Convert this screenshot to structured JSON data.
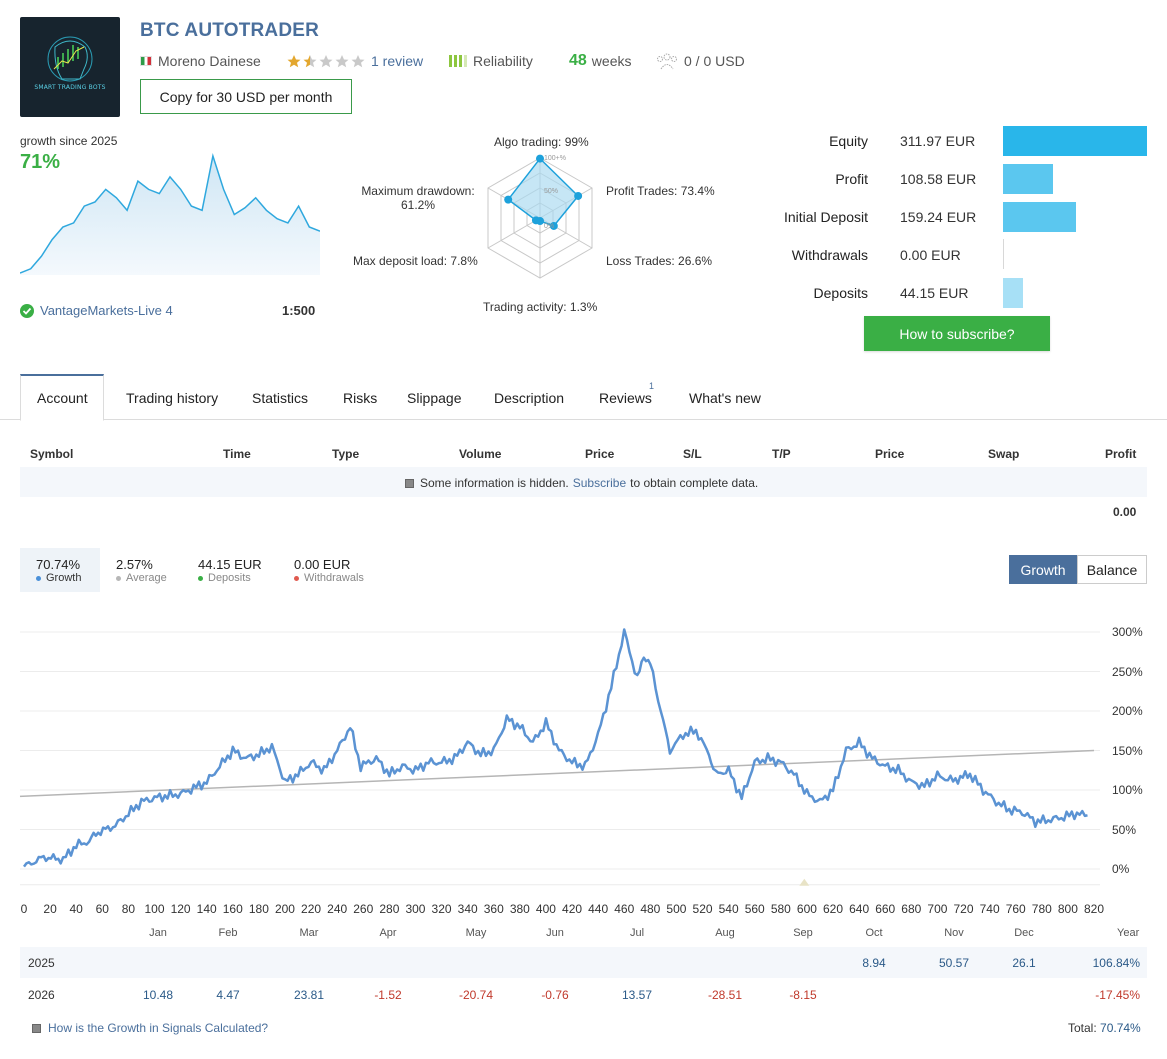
{
  "header": {
    "title": "BTC AUTOTRADER",
    "logo_text": "SMART TRADING BOTS",
    "author": "Moreno Dainese",
    "reviews": "1 review",
    "rating_stars": 1.5,
    "reliability": "Reliability",
    "weeks_value": "48",
    "weeks_label": "weeks",
    "subscribers": "0 / 0 USD",
    "copy_button": "Copy for 30 USD per month"
  },
  "growth_panel": {
    "label": "growth since 2025",
    "value": "71%",
    "broker": "VantageMarkets-Live 4",
    "leverage": "1:500",
    "sparkline": [
      0,
      5,
      20,
      40,
      55,
      60,
      80,
      85,
      100,
      90,
      75,
      110,
      100,
      95,
      115,
      100,
      80,
      75,
      140,
      100,
      70,
      78,
      90,
      75,
      65,
      60,
      80,
      55,
      50
    ]
  },
  "radar": {
    "algo": "Algo trading: 99%",
    "profit_trades": "Profit Trades: 73.4%",
    "loss_trades": "Loss Trades: 26.6%",
    "activity": "Trading activity: 1.3%",
    "max_deposit_load": "Max deposit load: 7.8%",
    "max_drawdown_line1": "Maximum drawdown:",
    "max_drawdown_line2": "61.2%",
    "ring_100": "100+%",
    "ring_50": "50%",
    "ring_0": "0%",
    "values": [
      99,
      73.4,
      26.6,
      1.3,
      7.8,
      61.2
    ]
  },
  "balance_panel": {
    "rows": [
      {
        "label": "Equity",
        "value": "311.97 EUR",
        "bar": 1.0,
        "color": "#29b6ea"
      },
      {
        "label": "Profit",
        "value": "108.58 EUR",
        "bar": 0.348,
        "color": "#5bc7ef"
      },
      {
        "label": "Initial Deposit",
        "value": "159.24 EUR",
        "bar": 0.51,
        "color": "#5bc7ef"
      },
      {
        "label": "Withdrawals",
        "value": "0.00 EUR",
        "bar": 0.0,
        "color": "#5bc7ef"
      },
      {
        "label": "Deposits",
        "value": "44.15 EUR",
        "bar": 0.142,
        "color": "#a7e0f6"
      }
    ],
    "subscribe_button": "How to subscribe?"
  },
  "tabs": [
    {
      "label": "Account"
    },
    {
      "label": "Trading history"
    },
    {
      "label": "Statistics"
    },
    {
      "label": "Risks"
    },
    {
      "label": "Slippage"
    },
    {
      "label": "Description"
    },
    {
      "label": "Reviews",
      "badge": "1"
    },
    {
      "label": "What's new"
    }
  ],
  "table": {
    "headers": [
      "Symbol",
      "Time",
      "Type",
      "Volume",
      "Price",
      "S/L",
      "T/P",
      "Price",
      "Swap",
      "Profit"
    ],
    "hidden_note_before": "Some information is hidden.",
    "hidden_note_link": "Subscribe",
    "hidden_note_after": "to obtain complete data.",
    "profit_total": "0.00"
  },
  "summary": {
    "growth_value": "70.74%",
    "growth_label": "Growth",
    "average_value": "2.57%",
    "average_label": "Average",
    "deposits_value": "44.15 EUR",
    "deposits_label": "Deposits",
    "withdrawals_value": "0.00 EUR",
    "withdrawals_label": "Withdrawals"
  },
  "toggle": {
    "growth": "Growth",
    "balance": "Balance"
  },
  "colors": {
    "accent_blue": "#4a6f9c",
    "green": "#3aaf45",
    "chart_line": "#5b93d3",
    "trend_line": "#b5b5b5"
  },
  "chart_data": {
    "type": "line",
    "x_ticks": [
      "0",
      "20",
      "40",
      "60",
      "80",
      "100",
      "120",
      "140",
      "160",
      "180",
      "200",
      "220",
      "240",
      "260",
      "280",
      "300",
      "320",
      "340",
      "360",
      "380",
      "400",
      "420",
      "440",
      "460",
      "480",
      "500",
      "520",
      "540",
      "560",
      "580",
      "600",
      "620",
      "640",
      "660",
      "680",
      "700",
      "720",
      "740",
      "760",
      "780",
      "800",
      "820"
    ],
    "y_ticks": [
      "300%",
      "250%",
      "200%",
      "150%",
      "100%",
      "50%",
      "0%"
    ],
    "ylim": [
      0,
      300
    ],
    "xlim": [
      0,
      820
    ],
    "series": [
      {
        "values_x": [
          0,
          15,
          30,
          40,
          50,
          55,
          70,
          80,
          90,
          100,
          120,
          140,
          160,
          170,
          180,
          190,
          200,
          210,
          220,
          230,
          240,
          250,
          258,
          270,
          280,
          290,
          300,
          310,
          320,
          330,
          340,
          350,
          360,
          370,
          380,
          390,
          400,
          410,
          420,
          430,
          440,
          450,
          460,
          470,
          475,
          480,
          488,
          495,
          505,
          515,
          525,
          530,
          540,
          550,
          560,
          570,
          580,
          590,
          600,
          610,
          620,
          630,
          640,
          650,
          660,
          670,
          680,
          690,
          700,
          712,
          725,
          735,
          745,
          755,
          765,
          775,
          785,
          795,
          805,
          815
        ],
        "values_y": [
          3,
          15,
          12,
          30,
          35,
          45,
          55,
          70,
          85,
          90,
          95,
          110,
          150,
          140,
          145,
          155,
          110,
          120,
          135,
          125,
          150,
          180,
          130,
          140,
          120,
          130,
          125,
          135,
          135,
          140,
          160,
          145,
          150,
          190,
          180,
          160,
          185,
          150,
          135,
          130,
          170,
          230,
          300,
          240,
          270,
          260,
          200,
          150,
          170,
          175,
          145,
          120,
          125,
          90,
          135,
          140,
          135,
          120,
          95,
          85,
          100,
          150,
          160,
          140,
          130,
          125,
          110,
          105,
          118,
          112,
          120,
          100,
          85,
          75,
          72,
          60,
          62,
          65,
          70,
          68
        ],
        "name": "Growth",
        "color": "#5b93d3"
      }
    ],
    "trend": {
      "from": [
        0,
        92
      ],
      "to": [
        820,
        150
      ]
    }
  },
  "yearly": {
    "months": [
      "Jan",
      "Feb",
      "Mar",
      "Apr",
      "May",
      "Jun",
      "Jul",
      "Aug",
      "Sep",
      "Oct",
      "Nov",
      "Dec"
    ],
    "year_label": "Year",
    "rows": [
      {
        "year": "2025",
        "values": [
          "",
          "",
          "",
          "",
          "",
          "",
          "",
          "",
          "",
          "8.94",
          "50.57",
          "26.1"
        ],
        "total": "106.84%"
      },
      {
        "year": "2026",
        "values": [
          "10.48",
          "4.47",
          "23.81",
          "-1.52",
          "-20.74",
          "-0.76",
          "13.57",
          "-28.51",
          "-8.15",
          "",
          "",
          ""
        ],
        "total": "-17.45%"
      }
    ],
    "footer_link": "How is the Growth in Signals Calculated?",
    "total_label": "Total:",
    "total_value": "70.74%"
  }
}
